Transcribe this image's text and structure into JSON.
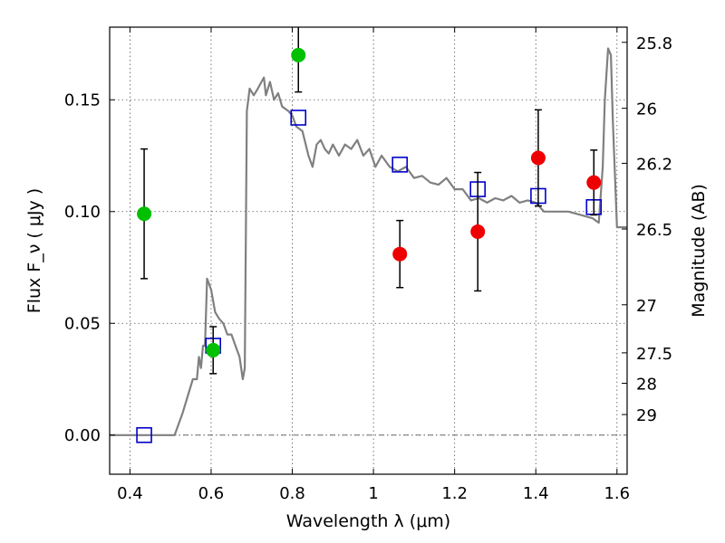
{
  "chart_data": {
    "type": "scatter",
    "xlabel": "Wavelength  λ (μm)",
    "ylabel": "Flux  F_ν  ( μJy )",
    "y2label": "Magnitude (AB)",
    "xlim": [
      0.35,
      1.625
    ],
    "ylim": [
      -0.0175,
      0.1825
    ],
    "grid": true,
    "x_ticks": [
      {
        "value": 0.4,
        "label": "0.4"
      },
      {
        "value": 0.6,
        "label": "0.6"
      },
      {
        "value": 0.8,
        "label": "0.8"
      },
      {
        "value": 1.0,
        "label": "1"
      },
      {
        "value": 1.2,
        "label": "1.2"
      },
      {
        "value": 1.4,
        "label": "1.4"
      },
      {
        "value": 1.6,
        "label": "1.6"
      }
    ],
    "y_ticks": [
      {
        "value": 0.0,
        "label": "0.00"
      },
      {
        "value": 0.05,
        "label": "0.05"
      },
      {
        "value": 0.1,
        "label": "0.10"
      },
      {
        "value": 0.15,
        "label": "0.15"
      }
    ],
    "y2_ticks": [
      {
        "label": "25.8",
        "flux": 0.1757
      },
      {
        "label": "26",
        "flux": 0.1462
      },
      {
        "label": "26.2",
        "flux": 0.1216
      },
      {
        "label": "26.5",
        "flux": 0.0922
      },
      {
        "label": "27",
        "flux": 0.0583
      },
      {
        "label": "27.5",
        "flux": 0.0368
      },
      {
        "label": "28",
        "flux": 0.0232
      },
      {
        "label": "29",
        "flux": 0.0092
      }
    ],
    "series": [
      {
        "kind": "line",
        "color": "#808080",
        "x": [
          0.35,
          0.44,
          0.51,
          0.53,
          0.555,
          0.565,
          0.57,
          0.575,
          0.58,
          0.585,
          0.59,
          0.6,
          0.61,
          0.62,
          0.63,
          0.64,
          0.65,
          0.66,
          0.67,
          0.678,
          0.683,
          0.688,
          0.695,
          0.705,
          0.715,
          0.73,
          0.735,
          0.745,
          0.755,
          0.765,
          0.775,
          0.79,
          0.8,
          0.81,
          0.825,
          0.84,
          0.85,
          0.86,
          0.87,
          0.88,
          0.89,
          0.9,
          0.915,
          0.93,
          0.945,
          0.96,
          0.975,
          0.99,
          1.005,
          1.02,
          1.04,
          1.06,
          1.08,
          1.1,
          1.12,
          1.14,
          1.16,
          1.18,
          1.2,
          1.22,
          1.24,
          1.26,
          1.28,
          1.3,
          1.32,
          1.34,
          1.36,
          1.38,
          1.4,
          1.42,
          1.44,
          1.46,
          1.48,
          1.5,
          1.52,
          1.54,
          1.555,
          1.565,
          1.57,
          1.578,
          1.585,
          1.59,
          1.6,
          1.625
        ],
        "y": [
          0.0,
          0.0,
          0.0,
          0.01,
          0.025,
          0.025,
          0.035,
          0.03,
          0.04,
          0.04,
          0.07,
          0.065,
          0.055,
          0.052,
          0.05,
          0.045,
          0.045,
          0.04,
          0.035,
          0.025,
          0.03,
          0.145,
          0.155,
          0.152,
          0.155,
          0.16,
          0.152,
          0.158,
          0.15,
          0.153,
          0.147,
          0.145,
          0.143,
          0.138,
          0.136,
          0.125,
          0.12,
          0.13,
          0.132,
          0.128,
          0.126,
          0.13,
          0.125,
          0.13,
          0.128,
          0.132,
          0.125,
          0.128,
          0.12,
          0.125,
          0.12,
          0.118,
          0.12,
          0.115,
          0.116,
          0.113,
          0.112,
          0.115,
          0.11,
          0.11,
          0.105,
          0.106,
          0.104,
          0.106,
          0.105,
          0.107,
          0.104,
          0.105,
          0.104,
          0.1,
          0.1,
          0.1,
          0.1,
          0.099,
          0.098,
          0.097,
          0.095,
          0.12,
          0.15,
          0.173,
          0.17,
          0.14,
          0.093,
          0.093
        ]
      },
      {
        "kind": "points",
        "marker": "square",
        "color": "#0000cc",
        "x": [
          0.435,
          0.605,
          0.815,
          1.065,
          1.257,
          1.406,
          1.543
        ],
        "y": [
          0.0,
          0.04,
          0.142,
          0.121,
          0.11,
          0.107,
          0.102
        ]
      },
      {
        "kind": "points",
        "marker": "circle",
        "color": "#00c000",
        "x": [
          0.435,
          0.605,
          0.815
        ],
        "y": [
          0.099,
          0.038,
          0.17
        ],
        "err": [
          0.029,
          0.0105,
          0.0165
        ]
      },
      {
        "kind": "points",
        "marker": "circle",
        "color": "#ee0000",
        "x": [
          1.065,
          1.257,
          1.406,
          1.543
        ],
        "y": [
          0.081,
          0.091,
          0.124,
          0.113
        ],
        "err": [
          0.015,
          0.0265,
          0.0215,
          0.0145
        ]
      }
    ],
    "zero_line": {
      "value": 0.0,
      "color": "#555555"
    }
  }
}
